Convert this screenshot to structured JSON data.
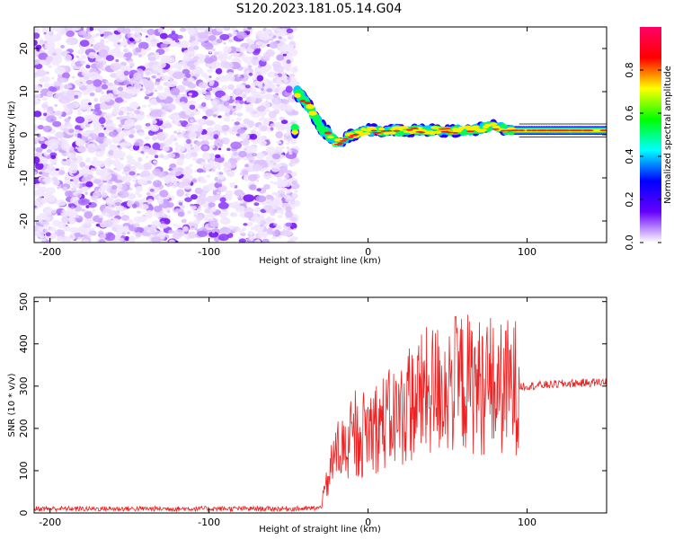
{
  "title": "S120.2023.181.05.14.G04",
  "chart_data": [
    {
      "type": "heatmap",
      "xlabel": "Height of straight line (km)",
      "ylabel": "Frequency (Hz)",
      "xlim": [
        -210,
        150
      ],
      "ylim": [
        -25,
        25
      ],
      "xticks": [
        -200,
        -100,
        0,
        100
      ],
      "yticks": [
        -20,
        -10,
        0,
        10,
        20
      ],
      "colorbar": {
        "label": "Normalized spectral amplitude",
        "range": [
          0,
          1
        ],
        "ticks": [
          0.0,
          0.2,
          0.4,
          0.6,
          0.8
        ],
        "tick_labels": [
          "0.0",
          "0.2",
          "0.4",
          "0.6",
          "0.8"
        ],
        "colormap": [
          "#ffffff",
          "#6600ff",
          "#0000ff",
          "#00ffff",
          "#00ff00",
          "#ffff00",
          "#ff0000",
          "#ff0066"
        ]
      },
      "noise_region_x": [
        -210,
        -45
      ],
      "signal_track": [
        {
          "x": -45,
          "y": 10
        },
        {
          "x": -40,
          "y": 8
        },
        {
          "x": -35,
          "y": 5
        },
        {
          "x": -30,
          "y": 2
        },
        {
          "x": -25,
          "y": 0
        },
        {
          "x": -20,
          "y": -2
        },
        {
          "x": -15,
          "y": -1
        },
        {
          "x": -10,
          "y": 0
        },
        {
          "x": 0,
          "y": 1
        },
        {
          "x": 20,
          "y": 1
        },
        {
          "x": 40,
          "y": 1
        },
        {
          "x": 60,
          "y": 1
        },
        {
          "x": 80,
          "y": 2
        },
        {
          "x": 90,
          "y": 1
        },
        {
          "x": 100,
          "y": 1
        },
        {
          "x": 120,
          "y": 1
        },
        {
          "x": 150,
          "y": 1
        }
      ]
    },
    {
      "type": "line",
      "xlabel": "Height of straight line (km)",
      "ylabel": "SNR (10 * v/v)",
      "xlim": [
        -210,
        150
      ],
      "ylim": [
        0,
        510
      ],
      "xticks": [
        -200,
        -100,
        0,
        100
      ],
      "yticks": [
        0,
        100,
        200,
        300,
        400,
        500
      ],
      "color": "#ee2222",
      "series": [
        {
          "x": [
            -210,
            -160,
            -110,
            -60,
            -40,
            -30,
            -25,
            -20,
            -15,
            -10,
            -5,
            0,
            10,
            20,
            30,
            40,
            50,
            60,
            70,
            80,
            90,
            100,
            120,
            150
          ],
          "values": [
            10,
            10,
            10,
            10,
            10,
            12,
            80,
            150,
            150,
            160,
            180,
            200,
            215,
            230,
            270,
            290,
            300,
            310,
            300,
            290,
            300,
            300,
            305,
            310
          ]
        }
      ]
    }
  ]
}
